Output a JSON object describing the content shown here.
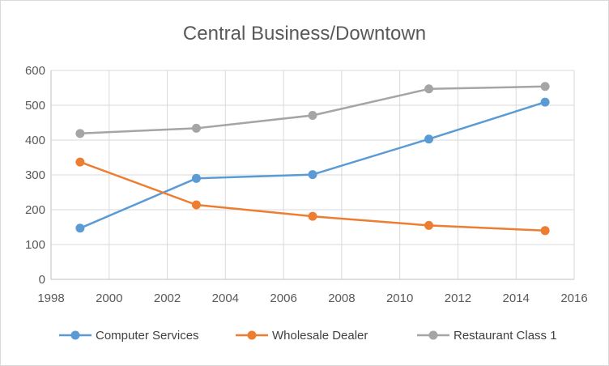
{
  "chart_data": {
    "type": "line",
    "title": "Central Business/Downtown",
    "xlabel": "",
    "ylabel": "",
    "xlim": [
      1998,
      2016
    ],
    "ylim": [
      0,
      600
    ],
    "xticks": [
      1998,
      2000,
      2002,
      2004,
      2006,
      2008,
      2010,
      2012,
      2014,
      2016
    ],
    "yticks": [
      0,
      100,
      200,
      300,
      400,
      500,
      600
    ],
    "grid": true,
    "legend_position": "bottom",
    "series": [
      {
        "name": "Computer Services",
        "color": "#5b9bd5",
        "points": [
          [
            1999,
            147
          ],
          [
            2003,
            290
          ],
          [
            2007,
            301
          ],
          [
            2011,
            403
          ],
          [
            2015,
            509
          ]
        ]
      },
      {
        "name": "Wholesale Dealer",
        "color": "#ed7d31",
        "points": [
          [
            1999,
            337
          ],
          [
            2003,
            214
          ],
          [
            2007,
            181
          ],
          [
            2011,
            155
          ],
          [
            2015,
            140
          ]
        ]
      },
      {
        "name": "Restaurant Class 1",
        "color": "#a5a5a5",
        "points": [
          [
            1999,
            419
          ],
          [
            2003,
            434
          ],
          [
            2007,
            471
          ],
          [
            2011,
            547
          ],
          [
            2015,
            554
          ]
        ]
      }
    ]
  }
}
